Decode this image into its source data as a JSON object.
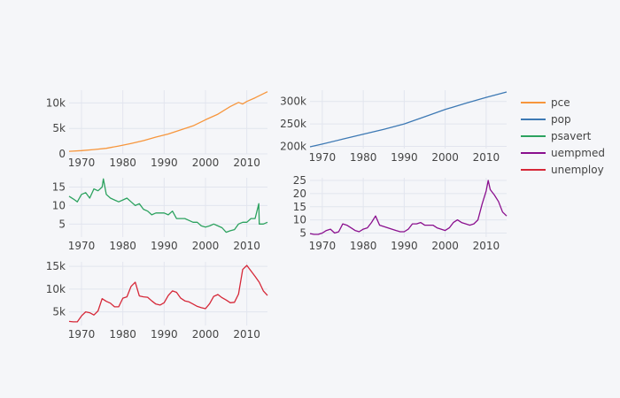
{
  "chart_data": [
    {
      "type": "line",
      "name": "pce",
      "color": "#f7963c",
      "xlim": [
        1967,
        2015
      ],
      "ylim": [
        0,
        12500
      ],
      "x_ticks": [
        1970,
        1980,
        1990,
        2000,
        2010
      ],
      "y_ticks": [
        0,
        5000,
        10000
      ],
      "y_tick_labels": [
        "0",
        "5k",
        "10k"
      ],
      "x": [
        1967,
        1970,
        1973,
        1976,
        1979,
        1982,
        1985,
        1988,
        1991,
        1994,
        1997,
        2000,
        2003,
        2006,
        2008,
        2009,
        2010,
        2012,
        2015
      ],
      "y": [
        500,
        650,
        850,
        1100,
        1550,
        2050,
        2600,
        3300,
        3900,
        4700,
        5500,
        6700,
        7800,
        9300,
        10100,
        9800,
        10300,
        11000,
        12200
      ]
    },
    {
      "type": "line",
      "name": "pop",
      "color": "#3d79b4",
      "xlim": [
        1967,
        2015
      ],
      "ylim": [
        195000,
        325000
      ],
      "x_ticks": [
        1970,
        1980,
        1990,
        2000,
        2010
      ],
      "y_ticks": [
        200000,
        250000,
        300000
      ],
      "y_tick_labels": [
        "200k",
        "250k",
        "300k"
      ],
      "x": [
        1967,
        1970,
        1975,
        1980,
        1985,
        1990,
        1995,
        2000,
        2005,
        2010,
        2015
      ],
      "y": [
        199000,
        205000,
        216000,
        227000,
        238000,
        250000,
        266000,
        282000,
        296000,
        309000,
        321000
      ]
    },
    {
      "type": "line",
      "name": "psavert",
      "color": "#2ca25f",
      "xlim": [
        1967,
        2015
      ],
      "ylim": [
        1.5,
        17.5
      ],
      "x_ticks": [
        1970,
        1980,
        1990,
        2000,
        2010
      ],
      "y_ticks": [
        5,
        10,
        15
      ],
      "y_tick_labels": [
        "5",
        "10",
        "15"
      ],
      "x": [
        1967,
        1968,
        1969,
        1970,
        1971,
        1972,
        1973,
        1974,
        1975,
        1975.3,
        1976,
        1977,
        1978,
        1979,
        1980,
        1981,
        1982,
        1983,
        1984,
        1985,
        1986,
        1987,
        1988,
        1989,
        1990,
        1991,
        1992,
        1993,
        1994,
        1995,
        1996,
        1997,
        1998,
        1999,
        2000,
        2001,
        2002,
        2003,
        2004,
        2005,
        2006,
        2007,
        2008,
        2009,
        2010,
        2011,
        2012,
        2012.9,
        2013,
        2014,
        2015
      ],
      "y": [
        12.5,
        11.8,
        11.0,
        13.0,
        13.5,
        12.0,
        14.5,
        14.0,
        15.0,
        17.2,
        13.0,
        12.0,
        11.5,
        11.0,
        11.5,
        12.0,
        11.0,
        10.0,
        10.5,
        9.0,
        8.5,
        7.5,
        8.0,
        8.0,
        8.0,
        7.5,
        8.5,
        6.5,
        6.5,
        6.5,
        6.0,
        5.5,
        5.5,
        4.5,
        4.2,
        4.5,
        5.0,
        4.5,
        4.0,
        2.8,
        3.2,
        3.5,
        5.0,
        5.5,
        5.5,
        6.5,
        6.5,
        10.5,
        5.0,
        5.0,
        5.5
      ]
    },
    {
      "type": "line",
      "name": "uempmed",
      "color": "#8a0f8e",
      "xlim": [
        1967,
        2015
      ],
      "ylim": [
        3.5,
        26
      ],
      "x_ticks": [
        1970,
        1980,
        1990,
        2000,
        2010
      ],
      "y_ticks": [
        5,
        10,
        15,
        20,
        25
      ],
      "y_tick_labels": [
        "5",
        "10",
        "15",
        "20",
        "25"
      ],
      "x": [
        1967,
        1968,
        1969,
        1970,
        1971,
        1972,
        1973,
        1974,
        1975,
        1976,
        1977,
        1978,
        1979,
        1980,
        1981,
        1982,
        1983,
        1984,
        1985,
        1986,
        1987,
        1988,
        1989,
        1990,
        1991,
        1992,
        1993,
        1994,
        1995,
        1996,
        1997,
        1998,
        1999,
        2000,
        2001,
        2002,
        2003,
        2004,
        2005,
        2006,
        2007,
        2008,
        2009,
        2010,
        2010.5,
        2011,
        2012,
        2013,
        2014,
        2015
      ],
      "y": [
        4.8,
        4.5,
        4.5,
        5.0,
        6.0,
        6.5,
        5.0,
        5.5,
        8.5,
        8.0,
        7.0,
        6.0,
        5.5,
        6.5,
        7.0,
        9.0,
        11.5,
        8.0,
        7.5,
        7.0,
        6.5,
        6.0,
        5.5,
        5.5,
        6.5,
        8.5,
        8.5,
        9.0,
        8.0,
        8.0,
        8.0,
        7.0,
        6.5,
        6.0,
        7.0,
        9.0,
        10.0,
        9.0,
        8.5,
        8.0,
        8.5,
        10.0,
        16.0,
        21.0,
        25.0,
        21.5,
        19.5,
        17.0,
        13.0,
        11.5
      ]
    },
    {
      "type": "line",
      "name": "unemploy",
      "color": "#d62838",
      "xlim": [
        1967,
        2015
      ],
      "ylim": [
        2000,
        16000
      ],
      "x_ticks": [
        1970,
        1980,
        1990,
        2000,
        2010
      ],
      "y_ticks": [
        5000,
        10000,
        15000
      ],
      "y_tick_labels": [
        "5k",
        "10k",
        "15k"
      ],
      "x": [
        1967,
        1968,
        1969,
        1970,
        1971,
        1972,
        1973,
        1974,
        1975,
        1976,
        1977,
        1978,
        1979,
        1980,
        1981,
        1982,
        1983,
        1984,
        1985,
        1986,
        1987,
        1988,
        1989,
        1990,
        1991,
        1992,
        1993,
        1994,
        1995,
        1996,
        1997,
        1998,
        1999,
        2000,
        2001,
        2002,
        2003,
        2004,
        2005,
        2006,
        2007,
        2008,
        2009,
        2010,
        2011,
        2012,
        2013,
        2014,
        2015
      ],
      "y": [
        2900,
        2800,
        2800,
        4100,
        5000,
        4800,
        4300,
        5200,
        7900,
        7300,
        6900,
        6100,
        6100,
        8000,
        8300,
        10600,
        11500,
        8500,
        8300,
        8200,
        7400,
        6700,
        6500,
        7000,
        8600,
        9600,
        9300,
        8000,
        7400,
        7200,
        6700,
        6200,
        5900,
        5700,
        6800,
        8400,
        8800,
        8100,
        7600,
        7000,
        7100,
        8900,
        14300,
        15200,
        14000,
        12800,
        11500,
        9600,
        8600
      ]
    }
  ],
  "legend": {
    "placement": "top-right",
    "entries": [
      {
        "label": "pce",
        "color": "#f7963c"
      },
      {
        "label": "pop",
        "color": "#3d79b4"
      },
      {
        "label": "psavert",
        "color": "#2ca25f"
      },
      {
        "label": "uempmed",
        "color": "#8a0f8e"
      },
      {
        "label": "unemploy",
        "color": "#d62838"
      }
    ]
  },
  "style": {
    "paper_bg": "#f5f6f9",
    "plot_bg": "#f5f6f9",
    "grid_color": "#e2e5ee",
    "grid": true
  }
}
